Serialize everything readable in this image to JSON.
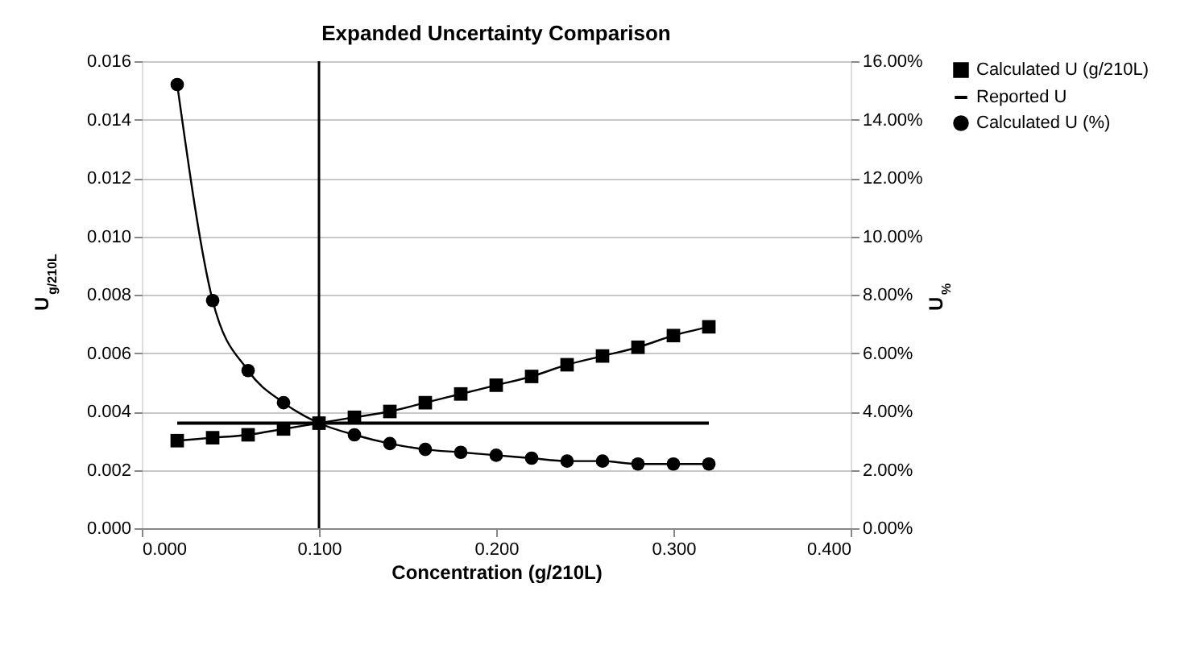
{
  "chart_data": {
    "type": "line",
    "title": "Expanded Uncertainty Comparison",
    "xlabel": "Concentration (g/210L)",
    "ylabel": "U$_{g/210L}$",
    "y2label": "U$_{%}$",
    "x": [
      0.02,
      0.04,
      0.06,
      0.08,
      0.1,
      0.12,
      0.14,
      0.16,
      0.18,
      0.2,
      0.22,
      0.24,
      0.26,
      0.28,
      0.3,
      0.32
    ],
    "series": [
      {
        "name": "Calculated U (g/210L)",
        "color": "#000000",
        "marker": "square",
        "values": [
          0.003,
          0.0031,
          0.0032,
          0.0034,
          0.0036,
          0.0038,
          0.004,
          0.0043,
          0.0046,
          0.0049,
          0.0052,
          0.0056,
          0.0059,
          0.0062,
          0.0066,
          0.0069
        ]
      },
      {
        "name": "Reported U",
        "color": "#000000",
        "marker": "none",
        "x": [
          0.02,
          0.32
        ],
        "values": [
          0.0036,
          0.0036
        ]
      },
      {
        "name": "Calculated U (%)",
        "color": "#000000",
        "marker": "circle",
        "axis": "y2",
        "values": [
          15.2,
          7.8,
          5.4,
          4.3,
          3.6,
          3.2,
          2.9,
          2.7,
          2.6,
          2.5,
          2.4,
          2.3,
          2.3,
          2.2,
          2.2,
          2.2
        ]
      }
    ],
    "xlim": [
      0,
      0.4
    ],
    "xticks": [
      {
        "value": 0,
        "label": "0.000"
      },
      {
        "value": 0.1,
        "label": "0.100"
      },
      {
        "value": 0.2,
        "label": "0.200"
      },
      {
        "value": 0.3,
        "label": "0.300"
      },
      {
        "value": 0.4,
        "label": "0.400"
      }
    ],
    "ylim": [
      0,
      0.016
    ],
    "yticks": [
      {
        "value": 0,
        "label": "0.000"
      },
      {
        "value": 0.002,
        "label": "0.002"
      },
      {
        "value": 0.004,
        "label": "0.004"
      },
      {
        "value": 0.006,
        "label": "0.006"
      },
      {
        "value": 0.008,
        "label": "0.008"
      },
      {
        "value": 0.01,
        "label": "0.010"
      },
      {
        "value": 0.012,
        "label": "0.012"
      },
      {
        "value": 0.014,
        "label": "0.014"
      },
      {
        "value": 0.016,
        "label": "0.016"
      }
    ],
    "y2lim": [
      0,
      16
    ],
    "y2ticks": [
      {
        "value": 0,
        "label": "0.00%"
      },
      {
        "value": 2,
        "label": "2.00%"
      },
      {
        "value": 4,
        "label": "4.00%"
      },
      {
        "value": 6,
        "label": "6.00%"
      },
      {
        "value": 8,
        "label": "8.00%"
      },
      {
        "value": 10,
        "label": "10.00%"
      },
      {
        "value": 12,
        "label": "12.00%"
      },
      {
        "value": 14,
        "label": "14.00%"
      },
      {
        "value": 16,
        "label": "16.00%"
      }
    ],
    "ref_lines": [
      {
        "axis": "x",
        "value": 0.1,
        "color": "#000000"
      }
    ],
    "grid": "y",
    "legend": "right",
    "line_style": "solid"
  }
}
